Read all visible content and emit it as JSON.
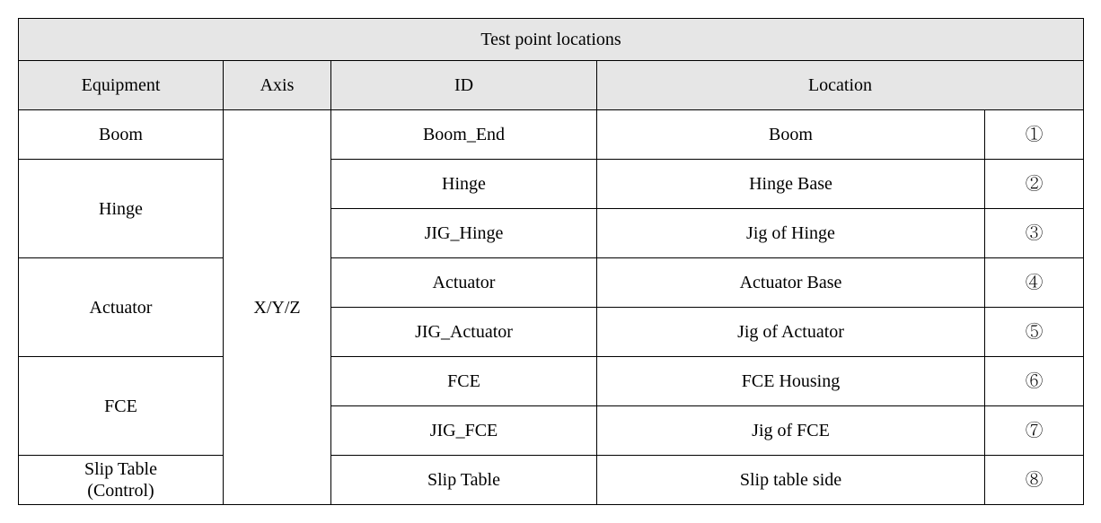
{
  "table": {
    "title": "Test point locations",
    "headers": {
      "equipment": "Equipment",
      "axis": "Axis",
      "id": "ID",
      "location": "Location"
    },
    "axis_value": "X/Y/Z",
    "rows": [
      {
        "equipment": "Boom",
        "equipment_rowspan": 1,
        "id": "Boom_End",
        "location": "Boom",
        "num": "①"
      },
      {
        "equipment": "Hinge",
        "equipment_rowspan": 2,
        "id": "Hinge",
        "location": "Hinge Base",
        "num": "②"
      },
      {
        "equipment": null,
        "equipment_rowspan": 0,
        "id": "JIG_Hinge",
        "location": "Jig of Hinge",
        "num": "③"
      },
      {
        "equipment": "Actuator",
        "equipment_rowspan": 2,
        "id": "Actuator",
        "location": "Actuator Base",
        "num": "④"
      },
      {
        "equipment": null,
        "equipment_rowspan": 0,
        "id": "JIG_Actuator",
        "location": "Jig of Actuator",
        "num": "⑤"
      },
      {
        "equipment": "FCE",
        "equipment_rowspan": 2,
        "id": "FCE",
        "location": "FCE Housing",
        "num": "⑥"
      },
      {
        "equipment": null,
        "equipment_rowspan": 0,
        "id": "JIG_FCE",
        "location": "Jig of FCE",
        "num": "⑦"
      },
      {
        "equipment": "Slip Table\n(Control)",
        "equipment_rowspan": 1,
        "id": "Slip Table",
        "location": "Slip table side",
        "num": "⑧"
      }
    ]
  },
  "style": {
    "header_bg": "#e6e6e6",
    "border_color": "#000000",
    "font_size_pt": 15,
    "font_family": "Batang / Times-like serif"
  }
}
